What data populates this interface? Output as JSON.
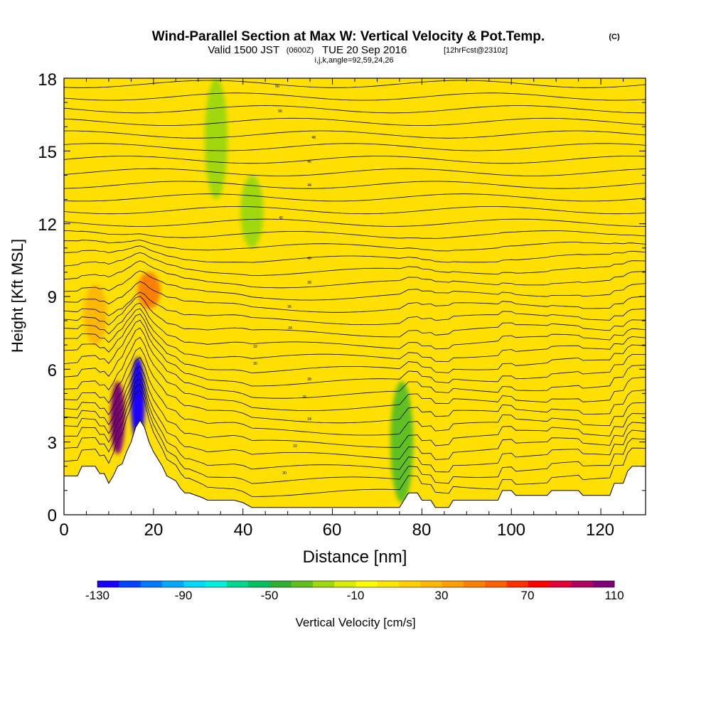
{
  "chart_data": {
    "type": "heatmap",
    "title": "Wind-Parallel Section at Max W: Vertical Velocity & Pot.Temp.",
    "title_tag": "(C)",
    "subtitle_main": "Valid 1500 JST",
    "subtitle_utc": "(0600Z)",
    "subtitle_date": "TUE 20 Sep 2016",
    "subtitle_fcst": "[12hrFcst@2310z]",
    "subtitle_grid": "i,j,k,angle=92,59,24,26",
    "xlabel": "Distance [nm]",
    "ylabel": "Height [Kft MSL]",
    "xlim": [
      0,
      130
    ],
    "ylim": [
      0,
      18
    ],
    "x_ticks": [
      "0",
      "20",
      "40",
      "60",
      "80",
      "100",
      "120"
    ],
    "y_ticks": [
      "0",
      "3",
      "6",
      "9",
      "12",
      "15",
      "18"
    ],
    "colorbar": {
      "label": "Vertical Velocity [cm/s]",
      "ticks": [
        "-130",
        "-90",
        "-50",
        "-10",
        "30",
        "70",
        "110"
      ],
      "range": [
        -130,
        110
      ],
      "colors": [
        "#1a00ff",
        "#0044ff",
        "#0078ff",
        "#00a8ff",
        "#00d8ff",
        "#00f0e0",
        "#00d890",
        "#00c060",
        "#30b030",
        "#60c020",
        "#a0d810",
        "#d8ec00",
        "#ffff00",
        "#ffe600",
        "#ffd000",
        "#ffb800",
        "#ffa000",
        "#ff8000",
        "#ff6000",
        "#ff3000",
        "#ff0000",
        "#e0003a",
        "#b00060",
        "#80007a"
      ]
    },
    "theta_labels": [
      "56",
      "50",
      "48",
      "46",
      "44",
      "42",
      "40",
      "38",
      "36",
      "34",
      "32",
      "30",
      "28",
      "26",
      "24",
      "22",
      "20"
    ],
    "vertical_velocity_features": [
      {
        "x": 12,
        "height_range": [
          2.5,
          5.5
        ],
        "w": 110
      },
      {
        "x": 16.5,
        "height_range": [
          3.0,
          6.5
        ],
        "w": -130
      },
      {
        "x": 19,
        "height_range": [
          8.5,
          10
        ],
        "w": 40
      },
      {
        "x": 7,
        "height_range": [
          7,
          9.5
        ],
        "w": 25
      },
      {
        "x": 34,
        "height_range": [
          13,
          18
        ],
        "w": -30
      },
      {
        "x": 42,
        "height_range": [
          11,
          14
        ],
        "w": -25
      },
      {
        "x": 75.5,
        "height_range": [
          0.5,
          5.5
        ],
        "w": -40
      }
    ]
  }
}
